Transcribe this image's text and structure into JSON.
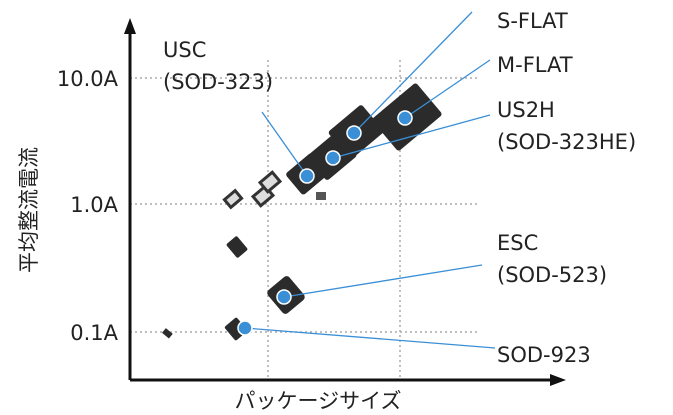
{
  "y_axis": {
    "title": "平均整流電流",
    "labels": [
      "10.0A",
      "1.0A",
      "0.1A"
    ]
  },
  "x_axis": {
    "title": "パッケージサイズ"
  },
  "callouts": [
    {
      "lines": [
        "S-FLAT"
      ]
    },
    {
      "lines": [
        "M-FLAT"
      ]
    },
    {
      "lines": [
        "US2H",
        "(SOD-323HE)"
      ]
    },
    {
      "lines": [
        "USC",
        "(SOD-323)"
      ]
    },
    {
      "lines": [
        "ESC",
        "(SOD-523)"
      ]
    },
    {
      "lines": [
        "SOD-923"
      ]
    }
  ]
}
